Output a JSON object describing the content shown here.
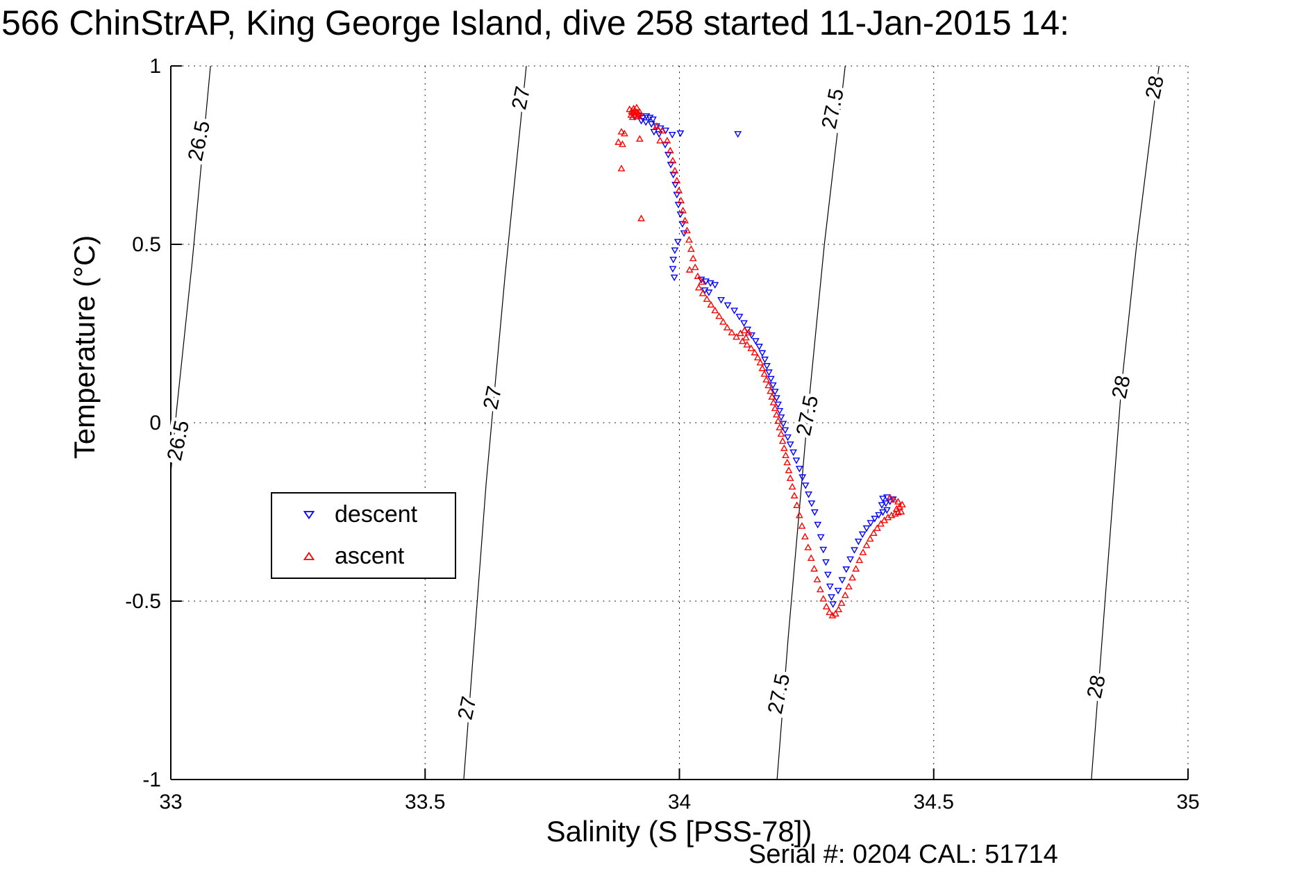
{
  "title": "566 ChinStrAP, King George Island, dive 258 started 11-Jan-2015 14:",
  "annotation": "Serial #: 0204  CAL: 51714",
  "colors": {
    "descent": "#0000ff",
    "ascent": "#ff0000",
    "contour": "#000000",
    "grid": "#000000",
    "axis": "#000000"
  },
  "legend": {
    "items": [
      {
        "label": "descent",
        "marker": "triangle-down-icon",
        "color": "#0000ff"
      },
      {
        "label": "ascent",
        "marker": "triangle-up-icon",
        "color": "#ff0000"
      }
    ]
  },
  "chart_data": {
    "type": "scatter",
    "title": "566 ChinStrAP, King George Island, dive 258 started 11-Jan-2015 14:",
    "xlabel": "Salinity (S [PSS-78])",
    "ylabel": "Temperature (°C)",
    "xlim": [
      33,
      35
    ],
    "ylim": [
      -1,
      1
    ],
    "xticks": [
      33,
      33.5,
      34,
      34.5,
      35
    ],
    "xtick_labels": [
      "33",
      "33.5",
      "34",
      "34.5",
      "35"
    ],
    "yticks": [
      1,
      0.5,
      0,
      -0.5,
      -1
    ],
    "ytick_labels": [
      "1",
      "0.5",
      "0",
      "-0.5",
      "-1"
    ],
    "grid": true,
    "legend_position": "left-middle",
    "contours": [
      {
        "value": "26.5",
        "path": [
          [
            33.078,
            1.0
          ],
          [
            33.042,
            0.45
          ],
          [
            33.011,
            0.03
          ],
          [
            33.0,
            -0.14
          ]
        ],
        "labels": [
          {
            "s": 33.056,
            "t": 0.79
          },
          {
            "s": 33.015,
            "t": -0.05
          }
        ]
      },
      {
        "value": "27",
        "path": [
          [
            33.699,
            1.0
          ],
          [
            33.657,
            0.41
          ],
          [
            33.62,
            -0.17
          ],
          [
            33.576,
            -1.0
          ]
        ],
        "labels": [
          {
            "s": 33.689,
            "t": 0.91
          },
          {
            "s": 33.633,
            "t": 0.07
          },
          {
            "s": 33.583,
            "t": -0.8
          }
        ]
      },
      {
        "value": "27.5",
        "path": [
          [
            34.326,
            1.0
          ],
          [
            34.285,
            0.5
          ],
          [
            34.252,
            0.02
          ],
          [
            34.214,
            -0.6
          ],
          [
            34.192,
            -1.0
          ]
        ],
        "labels": [
          {
            "s": 34.302,
            "t": 0.88
          },
          {
            "s": 34.252,
            "t": 0.02
          },
          {
            "s": 34.196,
            "t": -0.76
          }
        ]
      },
      {
        "value": "28",
        "path": [
          [
            34.943,
            1.0
          ],
          [
            34.899,
            0.5
          ],
          [
            34.869,
            0.1
          ],
          [
            34.81,
            -1.0
          ]
        ],
        "labels": [
          {
            "s": 34.935,
            "t": 0.94
          },
          {
            "s": 34.869,
            "t": 0.1
          },
          {
            "s": 34.82,
            "t": -0.74
          }
        ]
      }
    ],
    "series": [
      {
        "name": "descent",
        "marker": "triangle-down",
        "color": "#0000ff",
        "points": [
          [
            33.912,
            0.858
          ],
          [
            33.92,
            0.862
          ],
          [
            33.928,
            0.855
          ],
          [
            33.935,
            0.86
          ],
          [
            33.942,
            0.856
          ],
          [
            33.948,
            0.851
          ],
          [
            33.925,
            0.847
          ],
          [
            33.934,
            0.843
          ],
          [
            33.945,
            0.838
          ],
          [
            33.955,
            0.832
          ],
          [
            33.963,
            0.826
          ],
          [
            33.973,
            0.82
          ],
          [
            33.95,
            0.816
          ],
          [
            33.96,
            0.81
          ],
          [
            33.986,
            0.808
          ],
          [
            34.002,
            0.812
          ],
          [
            34.115,
            0.81
          ],
          [
            33.972,
            0.78
          ],
          [
            33.978,
            0.752
          ],
          [
            33.983,
            0.724
          ],
          [
            33.988,
            0.696
          ],
          [
            33.992,
            0.668
          ],
          [
            33.995,
            0.64
          ],
          [
            33.998,
            0.612
          ],
          [
            34.002,
            0.585
          ],
          [
            34.006,
            0.558
          ],
          [
            34.009,
            0.532
          ],
          [
            33.997,
            0.508
          ],
          [
            33.991,
            0.484
          ],
          [
            33.988,
            0.458
          ],
          [
            33.987,
            0.432
          ],
          [
            33.99,
            0.408
          ],
          [
            34.043,
            0.402
          ],
          [
            34.052,
            0.397
          ],
          [
            34.061,
            0.392
          ],
          [
            34.07,
            0.387
          ],
          [
            34.05,
            0.372
          ],
          [
            34.058,
            0.366
          ],
          [
            34.082,
            0.345
          ],
          [
            34.095,
            0.33
          ],
          [
            34.108,
            0.315
          ],
          [
            34.118,
            0.298
          ],
          [
            34.127,
            0.28
          ],
          [
            34.134,
            0.262
          ],
          [
            34.142,
            0.246
          ],
          [
            34.15,
            0.23
          ],
          [
            34.157,
            0.214
          ],
          [
            34.163,
            0.196
          ],
          [
            34.168,
            0.178
          ],
          [
            34.172,
            0.16
          ],
          [
            34.176,
            0.142
          ],
          [
            34.18,
            0.124
          ],
          [
            34.184,
            0.106
          ],
          [
            34.188,
            0.088
          ],
          [
            34.191,
            0.07
          ],
          [
            34.194,
            0.052
          ],
          [
            34.197,
            0.034
          ],
          [
            34.2,
            0.016
          ],
          [
            34.204,
            -0.002
          ],
          [
            34.208,
            -0.02
          ],
          [
            34.213,
            -0.04
          ],
          [
            34.218,
            -0.06
          ],
          [
            34.224,
            -0.082
          ],
          [
            34.23,
            -0.105
          ],
          [
            34.236,
            -0.128
          ],
          [
            34.242,
            -0.152
          ],
          [
            34.248,
            -0.175
          ],
          [
            34.254,
            -0.2
          ],
          [
            34.26,
            -0.225
          ],
          [
            34.266,
            -0.25
          ],
          [
            34.272,
            -0.285
          ],
          [
            34.278,
            -0.32
          ],
          [
            34.283,
            -0.355
          ],
          [
            34.288,
            -0.39
          ],
          [
            34.292,
            -0.425
          ],
          [
            34.296,
            -0.458
          ],
          [
            34.299,
            -0.488
          ],
          [
            34.302,
            -0.508
          ],
          [
            34.312,
            -0.47
          ],
          [
            34.32,
            -0.44
          ],
          [
            34.328,
            -0.41
          ],
          [
            34.336,
            -0.382
          ],
          [
            34.344,
            -0.356
          ],
          [
            34.352,
            -0.332
          ],
          [
            34.36,
            -0.312
          ],
          [
            34.368,
            -0.295
          ],
          [
            34.376,
            -0.28
          ],
          [
            34.384,
            -0.268
          ],
          [
            34.392,
            -0.258
          ],
          [
            34.4,
            -0.25
          ],
          [
            34.408,
            -0.244
          ],
          [
            34.398,
            -0.23
          ],
          [
            34.406,
            -0.225
          ],
          [
            34.414,
            -0.22
          ],
          [
            34.42,
            -0.214
          ],
          [
            34.408,
            -0.208
          ],
          [
            34.4,
            -0.212
          ]
        ]
      },
      {
        "name": "ascent",
        "marker": "triangle-up",
        "color": "#ff0000",
        "points": [
          [
            33.902,
            0.878
          ],
          [
            33.906,
            0.872
          ],
          [
            33.91,
            0.868
          ],
          [
            33.905,
            0.862
          ],
          [
            33.912,
            0.875
          ],
          [
            33.916,
            0.87
          ],
          [
            33.92,
            0.865
          ],
          [
            33.908,
            0.856
          ],
          [
            33.914,
            0.862
          ],
          [
            33.918,
            0.858
          ],
          [
            33.922,
            0.87
          ],
          [
            33.91,
            0.88
          ],
          [
            33.916,
            0.883
          ],
          [
            33.886,
            0.815
          ],
          [
            33.892,
            0.81
          ],
          [
            33.88,
            0.786
          ],
          [
            33.888,
            0.78
          ],
          [
            33.922,
            0.795
          ],
          [
            33.962,
            0.79
          ],
          [
            33.886,
            0.712
          ],
          [
            33.925,
            0.572
          ],
          [
            33.955,
            0.83
          ],
          [
            33.966,
            0.818
          ],
          [
            33.976,
            0.79
          ],
          [
            33.982,
            0.762
          ],
          [
            33.987,
            0.734
          ],
          [
            33.991,
            0.706
          ],
          [
            33.995,
            0.678
          ],
          [
            33.999,
            0.65
          ],
          [
            34.003,
            0.622
          ],
          [
            34.007,
            0.594
          ],
          [
            34.011,
            0.566
          ],
          [
            34.015,
            0.538
          ],
          [
            34.019,
            0.512
          ],
          [
            34.023,
            0.486
          ],
          [
            34.027,
            0.46
          ],
          [
            34.031,
            0.435
          ],
          [
            34.02,
            0.428
          ],
          [
            34.036,
            0.41
          ],
          [
            34.044,
            0.394
          ],
          [
            34.038,
            0.378
          ],
          [
            34.046,
            0.362
          ],
          [
            34.054,
            0.346
          ],
          [
            34.062,
            0.33
          ],
          [
            34.07,
            0.314
          ],
          [
            34.078,
            0.298
          ],
          [
            34.086,
            0.282
          ],
          [
            34.094,
            0.266
          ],
          [
            34.103,
            0.252
          ],
          [
            34.112,
            0.24
          ],
          [
            34.12,
            0.25
          ],
          [
            34.128,
            0.258
          ],
          [
            34.136,
            0.252
          ],
          [
            34.131,
            0.238
          ],
          [
            34.124,
            0.228
          ],
          [
            34.133,
            0.218
          ],
          [
            34.141,
            0.208
          ],
          [
            34.148,
            0.196
          ],
          [
            34.154,
            0.182
          ],
          [
            34.159,
            0.168
          ],
          [
            34.163,
            0.152
          ],
          [
            34.167,
            0.136
          ],
          [
            34.171,
            0.12
          ],
          [
            34.175,
            0.104
          ],
          [
            34.179,
            0.088
          ],
          [
            34.182,
            0.072
          ],
          [
            34.185,
            0.056
          ],
          [
            34.188,
            0.04
          ],
          [
            34.191,
            0.022
          ],
          [
            34.194,
            0.004
          ],
          [
            34.197,
            -0.014
          ],
          [
            34.2,
            -0.032
          ],
          [
            34.203,
            -0.052
          ],
          [
            34.206,
            -0.072
          ],
          [
            34.209,
            -0.092
          ],
          [
            34.212,
            -0.112
          ],
          [
            34.215,
            -0.134
          ],
          [
            34.218,
            -0.156
          ],
          [
            34.222,
            -0.18
          ],
          [
            34.226,
            -0.205
          ],
          [
            34.231,
            -0.232
          ],
          [
            34.236,
            -0.26
          ],
          [
            34.241,
            -0.29
          ],
          [
            34.247,
            -0.32
          ],
          [
            34.253,
            -0.35
          ],
          [
            34.259,
            -0.38
          ],
          [
            34.265,
            -0.41
          ],
          [
            34.271,
            -0.44
          ],
          [
            34.277,
            -0.468
          ],
          [
            34.283,
            -0.494
          ],
          [
            34.289,
            -0.516
          ],
          [
            34.295,
            -0.532
          ],
          [
            34.301,
            -0.541
          ],
          [
            34.307,
            -0.536
          ],
          [
            34.313,
            -0.524
          ],
          [
            34.319,
            -0.506
          ],
          [
            34.326,
            -0.484
          ],
          [
            34.333,
            -0.46
          ],
          [
            34.34,
            -0.435
          ],
          [
            34.347,
            -0.41
          ],
          [
            34.354,
            -0.386
          ],
          [
            34.361,
            -0.364
          ],
          [
            34.368,
            -0.344
          ],
          [
            34.375,
            -0.326
          ],
          [
            34.382,
            -0.31
          ],
          [
            34.389,
            -0.296
          ],
          [
            34.396,
            -0.284
          ],
          [
            34.403,
            -0.274
          ],
          [
            34.41,
            -0.266
          ],
          [
            34.417,
            -0.26
          ],
          [
            34.424,
            -0.256
          ],
          [
            34.43,
            -0.252
          ],
          [
            34.436,
            -0.25
          ],
          [
            34.427,
            -0.242
          ],
          [
            34.433,
            -0.236
          ],
          [
            34.438,
            -0.23
          ],
          [
            34.43,
            -0.222
          ],
          [
            34.422,
            -0.216
          ],
          [
            34.414,
            -0.21
          ]
        ]
      }
    ]
  }
}
